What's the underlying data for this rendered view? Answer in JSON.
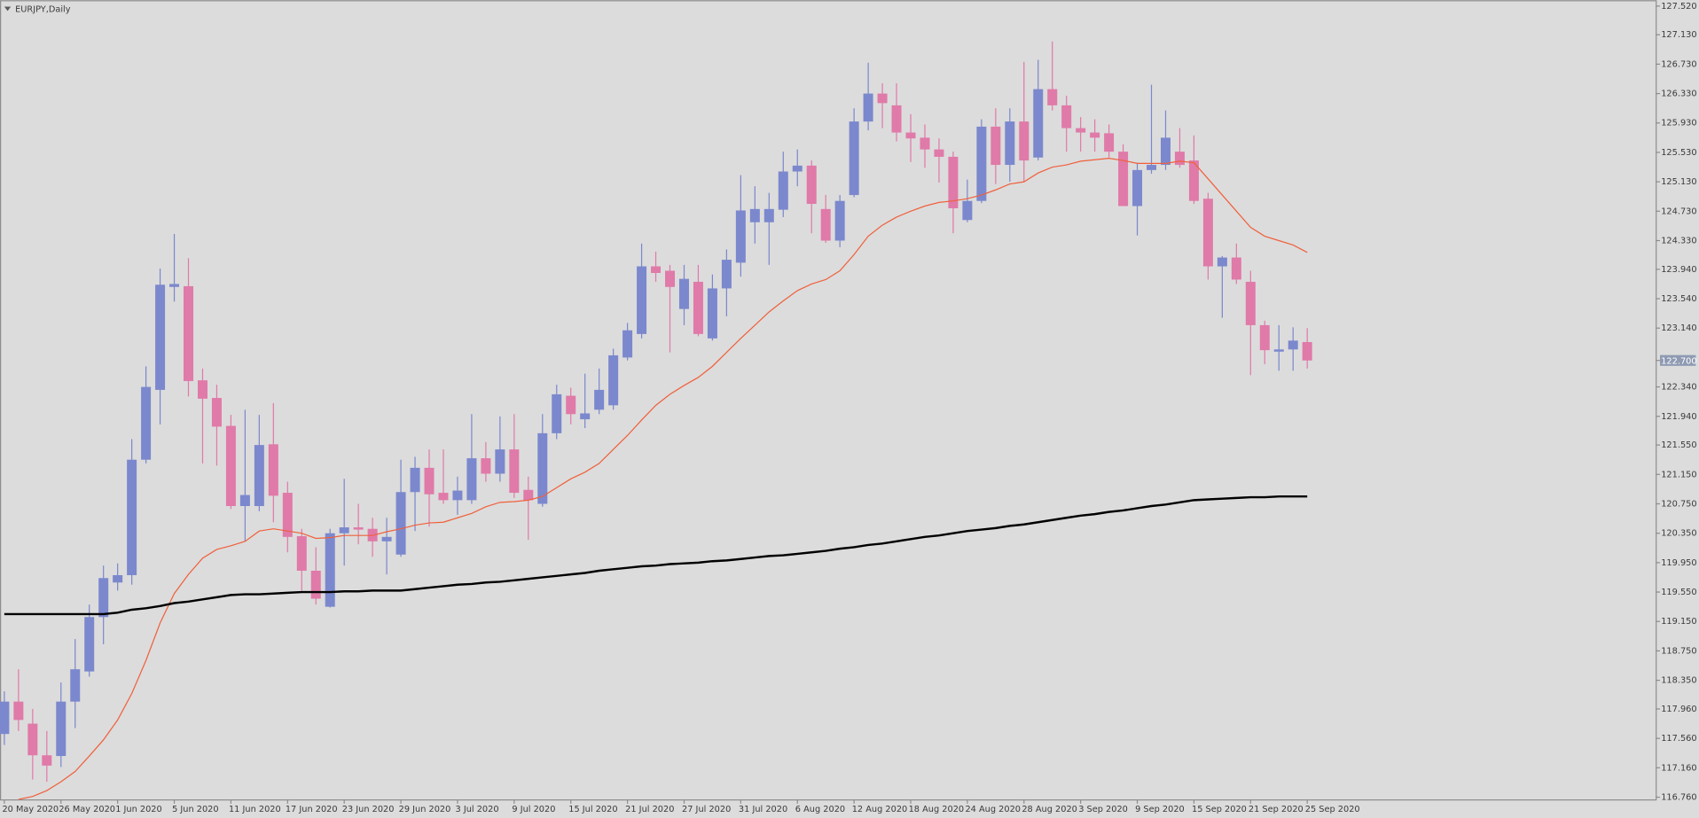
{
  "chart_data": {
    "type": "candlestick",
    "title": "EURJPY,Daily",
    "categories": [
      "20 May 2020",
      null,
      null,
      null,
      "26 May 2020",
      null,
      null,
      null,
      "1 Jun 2020",
      null,
      null,
      null,
      "5 Jun 2020",
      null,
      null,
      null,
      "11 Jun 2020",
      null,
      null,
      null,
      "17 Jun 2020",
      null,
      null,
      null,
      "23 Jun 2020",
      null,
      null,
      null,
      "29 Jun 2020",
      null,
      null,
      null,
      "3 Jul 2020",
      null,
      null,
      null,
      "9 Jul 2020",
      null,
      null,
      null,
      "15 Jul 2020",
      null,
      null,
      null,
      "21 Jul 2020",
      null,
      null,
      null,
      "27 Jul 2020",
      null,
      null,
      null,
      "31 Jul 2020",
      null,
      null,
      null,
      "6 Aug 2020",
      null,
      null,
      null,
      "12 Aug 2020",
      null,
      null,
      null,
      "18 Aug 2020",
      null,
      null,
      null,
      "24 Aug 2020",
      null,
      null,
      null,
      "28 Aug 2020",
      null,
      null,
      null,
      "3 Sep 2020",
      null,
      null,
      null,
      "9 Sep 2020",
      null,
      null,
      null,
      "15 Sep 2020",
      null,
      null,
      null,
      "21 Sep 2020",
      null,
      null,
      null,
      "25 Sep 2020"
    ],
    "open": [
      117.62,
      118.06,
      117.76,
      117.33,
      117.32,
      118.06,
      118.47,
      119.21,
      119.68,
      119.78,
      121.35,
      122.3,
      123.7,
      123.71,
      122.43,
      122.19,
      121.81,
      120.72,
      120.72,
      121.56,
      120.9,
      120.31,
      119.84,
      119.35,
      120.35,
      120.43,
      120.41,
      120.24,
      120.06,
      120.91,
      121.24,
      120.9,
      120.8,
      120.8,
      121.37,
      121.16,
      121.49,
      120.94,
      120.75,
      121.71,
      122.22,
      121.9,
      122.03,
      122.09,
      122.74,
      123.06,
      123.98,
      123.92,
      123.4,
      123.77,
      123.0,
      123.68,
      124.03,
      124.58,
      124.58,
      124.75,
      125.27,
      125.35,
      124.76,
      124.33,
      124.95,
      125.95,
      126.33,
      126.17,
      125.8,
      125.73,
      125.57,
      125.47,
      124.61,
      124.87,
      125.88,
      125.36,
      125.95,
      125.46,
      126.39,
      126.17,
      125.86,
      125.8,
      125.79,
      125.54,
      124.8,
      125.29,
      125.36,
      125.54,
      125.42,
      124.9,
      123.98,
      124.1,
      123.77,
      123.18,
      122.82,
      122.85,
      122.95
    ],
    "high": [
      118.2,
      118.5,
      117.96,
      117.66,
      118.32,
      118.91,
      119.38,
      119.91,
      119.94,
      121.63,
      122.62,
      123.95,
      124.42,
      124.09,
      122.59,
      122.37,
      121.96,
      122.03,
      121.96,
      122.12,
      121.05,
      120.41,
      120.16,
      120.41,
      121.09,
      120.75,
      120.56,
      120.56,
      121.35,
      121.39,
      121.49,
      121.49,
      121.12,
      121.97,
      121.59,
      121.94,
      121.97,
      121.12,
      121.97,
      122.37,
      122.33,
      122.52,
      122.59,
      122.86,
      123.21,
      124.29,
      124.18,
      124.0,
      124.0,
      124.0,
      123.87,
      124.21,
      125.22,
      125.07,
      124.98,
      125.54,
      125.57,
      125.42,
      124.95,
      124.95,
      126.13,
      126.75,
      126.47,
      126.47,
      126.05,
      125.91,
      125.72,
      125.54,
      125.16,
      125.98,
      126.13,
      126.13,
      126.76,
      126.79,
      127.04,
      126.3,
      126.01,
      125.98,
      125.91,
      125.64,
      125.39,
      126.45,
      126.1,
      125.86,
      125.76,
      124.98,
      124.12,
      124.29,
      123.92,
      123.24,
      123.18,
      123.15,
      123.14
    ],
    "low": [
      117.47,
      117.66,
      117.0,
      116.97,
      117.17,
      117.7,
      118.4,
      118.84,
      119.57,
      119.65,
      121.3,
      121.83,
      123.5,
      122.21,
      121.3,
      121.27,
      120.68,
      120.24,
      120.65,
      120.5,
      120.09,
      119.57,
      119.38,
      119.34,
      119.91,
      120.2,
      120.03,
      119.79,
      120.03,
      120.38,
      120.44,
      120.75,
      120.6,
      120.75,
      121.05,
      121.05,
      120.83,
      120.26,
      120.71,
      121.63,
      121.83,
      121.78,
      121.97,
      122.03,
      122.7,
      123.0,
      123.77,
      122.81,
      123.18,
      123.03,
      122.97,
      123.3,
      123.84,
      124.29,
      124.0,
      124.65,
      125.07,
      124.43,
      124.3,
      124.24,
      124.92,
      125.83,
      125.86,
      125.68,
      125.4,
      125.32,
      125.12,
      124.43,
      124.58,
      124.84,
      125.1,
      125.13,
      125.13,
      125.42,
      126.1,
      125.54,
      125.54,
      125.54,
      125.46,
      124.8,
      124.4,
      125.24,
      125.29,
      125.32,
      124.83,
      123.8,
      123.28,
      123.74,
      122.5,
      122.65,
      122.56,
      122.56,
      122.59
    ],
    "close": [
      118.06,
      117.81,
      117.33,
      117.19,
      118.06,
      118.5,
      119.21,
      119.74,
      119.78,
      121.35,
      122.34,
      123.73,
      123.74,
      122.42,
      122.18,
      121.8,
      120.72,
      120.87,
      121.55,
      120.86,
      120.3,
      119.84,
      119.46,
      120.35,
      120.43,
      120.4,
      120.24,
      120.3,
      120.91,
      121.24,
      120.88,
      120.8,
      120.93,
      121.37,
      121.16,
      121.49,
      120.9,
      120.8,
      121.71,
      122.24,
      121.97,
      121.98,
      122.3,
      122.77,
      123.11,
      123.98,
      123.89,
      123.7,
      123.81,
      123.06,
      123.68,
      124.07,
      124.74,
      124.76,
      124.76,
      125.27,
      125.35,
      124.83,
      124.33,
      124.87,
      125.95,
      126.33,
      126.2,
      125.8,
      125.72,
      125.57,
      125.47,
      124.77,
      124.87,
      125.88,
      125.36,
      125.95,
      125.42,
      126.39,
      126.17,
      125.86,
      125.8,
      125.73,
      125.54,
      124.8,
      125.29,
      125.36,
      125.73,
      125.36,
      124.87,
      123.98,
      124.1,
      123.8,
      123.18,
      122.84,
      122.85,
      122.97,
      122.7
    ],
    "up_color": "#7b88cd",
    "down_color": "#e07aa8",
    "lines": [
      {
        "color": "#f0603c",
        "width": 1,
        "values": [
          null,
          116.73,
          116.77,
          116.85,
          116.97,
          117.11,
          117.32,
          117.54,
          117.81,
          118.17,
          118.62,
          119.13,
          119.53,
          119.79,
          120.01,
          120.13,
          120.18,
          120.24,
          120.38,
          120.41,
          120.38,
          120.35,
          120.28,
          120.29,
          120.32,
          120.32,
          120.32,
          120.37,
          120.41,
          120.46,
          120.49,
          120.5,
          120.56,
          120.62,
          120.71,
          120.77,
          120.78,
          120.8,
          120.85,
          120.97,
          121.09,
          121.18,
          121.3,
          121.49,
          121.68,
          121.89,
          122.09,
          122.24,
          122.36,
          122.47,
          122.62,
          122.81,
          123.0,
          123.18,
          123.36,
          123.51,
          123.65,
          123.74,
          123.8,
          123.92,
          124.14,
          124.39,
          124.54,
          124.65,
          124.73,
          124.8,
          124.85,
          124.87,
          124.9,
          124.95,
          125.02,
          125.1,
          125.13,
          125.25,
          125.33,
          125.36,
          125.41,
          125.43,
          125.45,
          125.42,
          125.38,
          125.38,
          125.38,
          125.41,
          125.39,
          125.17,
          124.95,
          124.73,
          124.51,
          124.39,
          124.33,
          124.27,
          124.17
        ]
      },
      {
        "color": "#000000",
        "width": 2,
        "values": [
          119.25,
          119.25,
          119.25,
          119.25,
          119.25,
          119.25,
          119.25,
          119.25,
          119.27,
          119.31,
          119.33,
          119.36,
          119.4,
          119.42,
          119.45,
          119.48,
          119.51,
          119.52,
          119.52,
          119.53,
          119.54,
          119.55,
          119.55,
          119.55,
          119.56,
          119.56,
          119.57,
          119.57,
          119.57,
          119.59,
          119.61,
          119.63,
          119.65,
          119.66,
          119.68,
          119.69,
          119.71,
          119.73,
          119.75,
          119.77,
          119.79,
          119.81,
          119.84,
          119.86,
          119.88,
          119.9,
          119.91,
          119.93,
          119.94,
          119.95,
          119.97,
          119.98,
          120.0,
          120.02,
          120.04,
          120.05,
          120.07,
          120.09,
          120.11,
          120.14,
          120.16,
          120.19,
          120.21,
          120.24,
          120.27,
          120.3,
          120.32,
          120.35,
          120.38,
          120.4,
          120.42,
          120.45,
          120.47,
          120.5,
          120.53,
          120.56,
          120.59,
          120.61,
          120.64,
          120.66,
          120.69,
          120.72,
          120.74,
          120.77,
          120.8,
          120.81,
          120.82,
          120.83,
          120.84,
          120.84,
          120.85,
          120.85,
          120.85
        ]
      }
    ],
    "last_price": {
      "value": 122.7,
      "label": "122.700"
    },
    "ylim": [
      116.73,
      127.6
    ],
    "yticks": [
      {
        "value": 116.76,
        "label": "116.760"
      },
      {
        "value": 117.16,
        "label": "117.160"
      },
      {
        "value": 117.56,
        "label": "117.560"
      },
      {
        "value": 117.96,
        "label": "117.960"
      },
      {
        "value": 118.35,
        "label": "118.350"
      },
      {
        "value": 118.75,
        "label": "118.750"
      },
      {
        "value": 119.15,
        "label": "119.150"
      },
      {
        "value": 119.55,
        "label": "119.550"
      },
      {
        "value": 119.95,
        "label": "119.950"
      },
      {
        "value": 120.35,
        "label": "120.350"
      },
      {
        "value": 120.75,
        "label": "120.750"
      },
      {
        "value": 121.15,
        "label": "121.150"
      },
      {
        "value": 121.55,
        "label": "121.550"
      },
      {
        "value": 121.94,
        "label": "121.940"
      },
      {
        "value": 122.34,
        "label": "122.340"
      },
      {
        "value": 123.14,
        "label": "123.140"
      },
      {
        "value": 123.54,
        "label": "123.540"
      },
      {
        "value": 123.94,
        "label": "123.940"
      },
      {
        "value": 124.33,
        "label": "124.330"
      },
      {
        "value": 124.73,
        "label": "124.730"
      },
      {
        "value": 125.13,
        "label": "125.130"
      },
      {
        "value": 125.53,
        "label": "125.530"
      },
      {
        "value": 125.93,
        "label": "125.930"
      },
      {
        "value": 126.33,
        "label": "126.330"
      },
      {
        "value": 126.73,
        "label": "126.730"
      },
      {
        "value": 127.13,
        "label": "127.130"
      },
      {
        "value": 127.52,
        "label": "127.520"
      }
    ],
    "grid": false
  }
}
